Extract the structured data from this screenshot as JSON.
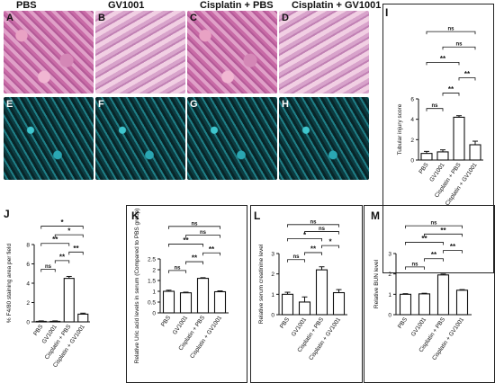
{
  "micro_panels": [
    {
      "letter": "A",
      "title": "PBS",
      "kind": "he"
    },
    {
      "letter": "B",
      "title": "GV1001",
      "kind": "he2"
    },
    {
      "letter": "C",
      "title": "Cisplatin + PBS",
      "kind": "he"
    },
    {
      "letter": "D",
      "title": "Cisplatin + GV1001",
      "kind": "he2"
    },
    {
      "letter": "E",
      "title": "",
      "kind": "fl"
    },
    {
      "letter": "F",
      "title": "",
      "kind": "fl"
    },
    {
      "letter": "G",
      "title": "",
      "kind": "fl"
    },
    {
      "letter": "H",
      "title": "",
      "kind": "fl"
    }
  ],
  "chart_data": [
    {
      "panel": "I",
      "type": "bar",
      "categories": [
        "PBS",
        "GV1001",
        "Cisplatin + PBS",
        "Cisplatin + GV1001"
      ],
      "values": [
        0.65,
        0.8,
        4.2,
        1.5
      ],
      "errors": [
        0.2,
        0.2,
        0.15,
        0.35
      ],
      "ylabel": "Tubular injury score",
      "ylim": [
        0,
        6
      ],
      "yticks": [
        0,
        2,
        4,
        6
      ],
      "brackets": [
        {
          "from": 0,
          "to": 1,
          "label": "ns"
        },
        {
          "from": 1,
          "to": 2,
          "label": "**"
        },
        {
          "from": 2,
          "to": 3,
          "label": "**"
        },
        {
          "from": 0,
          "to": 2,
          "label": "**"
        },
        {
          "from": 1,
          "to": 3,
          "label": "ns"
        },
        {
          "from": 0,
          "to": 3,
          "label": "ns"
        }
      ]
    },
    {
      "panel": "J",
      "type": "bar",
      "categories": [
        "PBS",
        "GV1001",
        "Cisplatin + PBS",
        "Cisplatin + GV1001"
      ],
      "values": [
        0.05,
        0.05,
        4.5,
        0.8
      ],
      "errors": [
        0.05,
        0.05,
        0.2,
        0.1
      ],
      "ylabel": "% F4/80 staining area per field",
      "ylim": [
        0,
        8
      ],
      "yticks": [
        0,
        2,
        4,
        6,
        8
      ],
      "brackets": [
        {
          "from": 0,
          "to": 1,
          "label": "ns"
        },
        {
          "from": 1,
          "to": 2,
          "label": "**"
        },
        {
          "from": 2,
          "to": 3,
          "label": "**"
        },
        {
          "from": 0,
          "to": 2,
          "label": "**"
        },
        {
          "from": 1,
          "to": 3,
          "label": "*"
        },
        {
          "from": 0,
          "to": 3,
          "label": "*"
        }
      ]
    },
    {
      "panel": "K",
      "type": "bar",
      "categories": [
        "PBS",
        "GV1001",
        "Cisplatin + PBS",
        "Cisplatin + GV1001"
      ],
      "values": [
        1.0,
        0.93,
        1.6,
        0.98
      ],
      "errors": [
        0.05,
        0.03,
        0.03,
        0.04
      ],
      "ylabel": "Relative Uric acid levels in serum (Compared to PBS group)",
      "ylim": [
        0,
        2.5
      ],
      "yticks": [
        0,
        0.5,
        1.0,
        1.5,
        2.0,
        2.5
      ],
      "brackets": [
        {
          "from": 0,
          "to": 1,
          "label": "ns"
        },
        {
          "from": 1,
          "to": 2,
          "label": "**"
        },
        {
          "from": 2,
          "to": 3,
          "label": "**"
        },
        {
          "from": 0,
          "to": 2,
          "label": "**"
        },
        {
          "from": 1,
          "to": 3,
          "label": "ns"
        },
        {
          "from": 0,
          "to": 3,
          "label": "ns"
        }
      ]
    },
    {
      "panel": "L",
      "type": "bar",
      "categories": [
        "PBS",
        "GV1001",
        "Cisplatin + PBS",
        "Cisplatin + GV1001"
      ],
      "values": [
        1.0,
        0.62,
        2.2,
        1.08
      ],
      "errors": [
        0.1,
        0.25,
        0.15,
        0.15
      ],
      "ylabel": "Relative serum creatinine level",
      "ylim": [
        0,
        3
      ],
      "yticks": [
        0,
        1,
        2,
        3
      ],
      "brackets": [
        {
          "from": 0,
          "to": 1,
          "label": "ns"
        },
        {
          "from": 1,
          "to": 2,
          "label": "**"
        },
        {
          "from": 2,
          "to": 3,
          "label": "*"
        },
        {
          "from": 0,
          "to": 2,
          "label": "*"
        },
        {
          "from": 1,
          "to": 3,
          "label": "ns"
        },
        {
          "from": 0,
          "to": 3,
          "label": "ns"
        }
      ]
    },
    {
      "panel": "M",
      "type": "bar",
      "categories": [
        "PBS",
        "GV1001",
        "Cisplatin + PBS",
        "Cisplatin + GV1001"
      ],
      "values": [
        1.0,
        1.02,
        1.95,
        1.2
      ],
      "errors": [
        0.03,
        0.03,
        0.04,
        0.03
      ],
      "ylabel": "Relative BUN level",
      "ylim": [
        0,
        3
      ],
      "yticks": [
        0,
        1,
        2,
        3
      ],
      "brackets": [
        {
          "from": 0,
          "to": 1,
          "label": "ns"
        },
        {
          "from": 1,
          "to": 2,
          "label": "**"
        },
        {
          "from": 2,
          "to": 3,
          "label": "**"
        },
        {
          "from": 0,
          "to": 2,
          "label": "**"
        },
        {
          "from": 1,
          "to": 3,
          "label": "**"
        },
        {
          "from": 0,
          "to": 3,
          "label": "ns"
        }
      ]
    }
  ]
}
